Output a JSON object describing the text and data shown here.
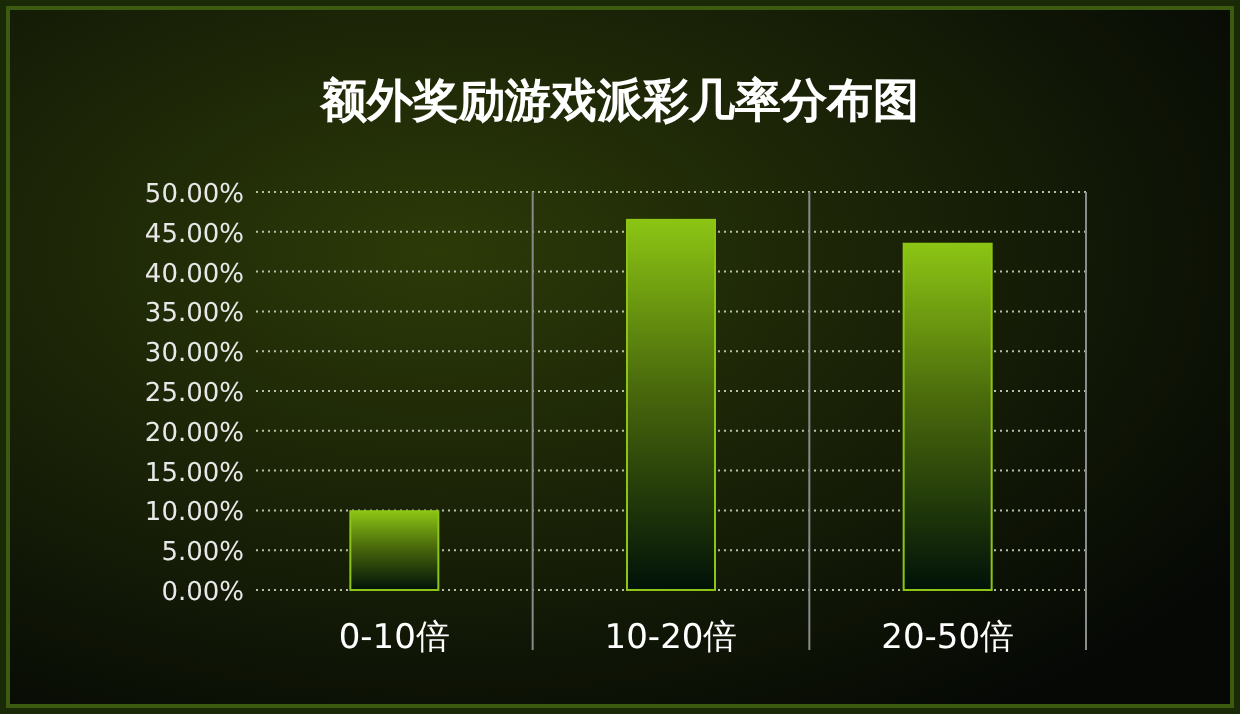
{
  "chart_data": {
    "type": "bar",
    "title": "额外奖励游戏派彩几率分布图",
    "categories": [
      "0-10倍",
      "10-20倍",
      "20-50倍"
    ],
    "values": [
      9.9,
      46.5,
      43.5
    ],
    "color": "#8cc514",
    "ylim": [
      0,
      50
    ],
    "yticks": [
      {
        "value": 0,
        "label": "0.00%"
      },
      {
        "value": 5,
        "label": "5.00%"
      },
      {
        "value": 10,
        "label": "10.00%"
      },
      {
        "value": 15,
        "label": "15.00%"
      },
      {
        "value": 20,
        "label": "20.00%"
      },
      {
        "value": 25,
        "label": "25.00%"
      },
      {
        "value": 30,
        "label": "30.00%"
      },
      {
        "value": 35,
        "label": "35.00%"
      },
      {
        "value": 40,
        "label": "40.00%"
      },
      {
        "value": 45,
        "label": "45.00%"
      },
      {
        "value": 50,
        "label": "50.00%"
      }
    ],
    "grid": "y"
  }
}
